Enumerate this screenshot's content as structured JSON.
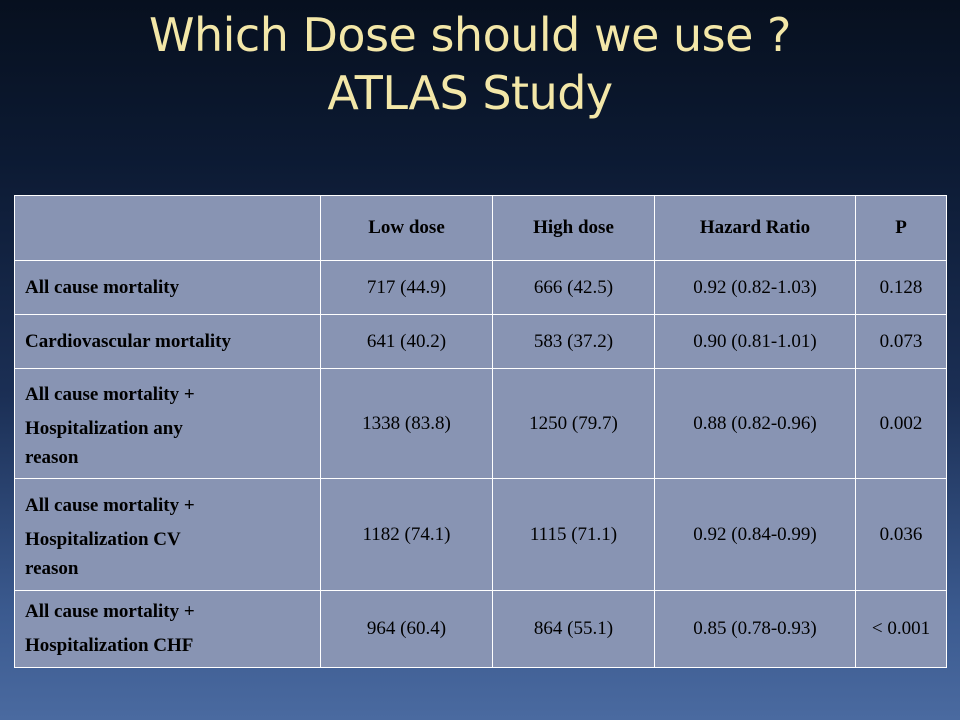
{
  "title": {
    "line1": "Which Dose should we use ?",
    "line2": "ATLAS Study"
  },
  "table": {
    "headers": [
      "",
      "Low dose",
      "High dose",
      "Hazard Ratio",
      "P"
    ],
    "rows": [
      {
        "label": [
          "All cause mortality"
        ],
        "low": "717 (44.9)",
        "high": "666 (42.5)",
        "hr": "0.92 (0.82-1.03)",
        "p": "0.128"
      },
      {
        "label": [
          "Cardiovascular mortality"
        ],
        "low": "641 (40.2)",
        "high": "583 (37.2)",
        "hr": "0.90 (0.81-1.01)",
        "p": "0.073"
      },
      {
        "label": [
          "All cause mortality +",
          "Hospitalization any",
          "reason"
        ],
        "low": "1338 (83.8)",
        "high": "1250 (79.7)",
        "hr": "0.88 (0.82-0.96)",
        "p": "0.002"
      },
      {
        "label": [
          "All cause mortality +",
          "Hospitalization CV",
          "reason"
        ],
        "low": "1182 (74.1)",
        "high": "1115 (71.1)",
        "hr": "0.92 (0.84-0.99)",
        "p": "0.036"
      },
      {
        "label": [
          "All cause mortality +",
          "Hospitalization CHF"
        ],
        "low": "964 (60.4)",
        "high": "864 (55.1)",
        "hr": "0.85 (0.78-0.93)",
        "p": "< 0.001"
      }
    ]
  }
}
